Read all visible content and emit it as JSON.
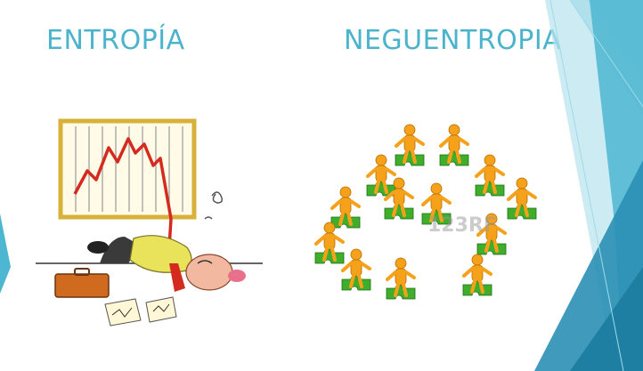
{
  "slide": {
    "left_title": "ENTROPÍA",
    "right_title": "NEGUENTROPIA"
  },
  "left_image": {
    "icon": "falling-chart-cartoon"
  },
  "right_image": {
    "icon": "puzzle-people-network",
    "watermark": "123RF"
  },
  "colors": {
    "title": "#4bb4cc",
    "accent_light": "#8fd3e4",
    "accent_mid": "#3fa9c9",
    "accent_dark": "#1f7fa3",
    "figure_orange": "#f5a21a",
    "puzzle_green": "#3fae2a"
  }
}
